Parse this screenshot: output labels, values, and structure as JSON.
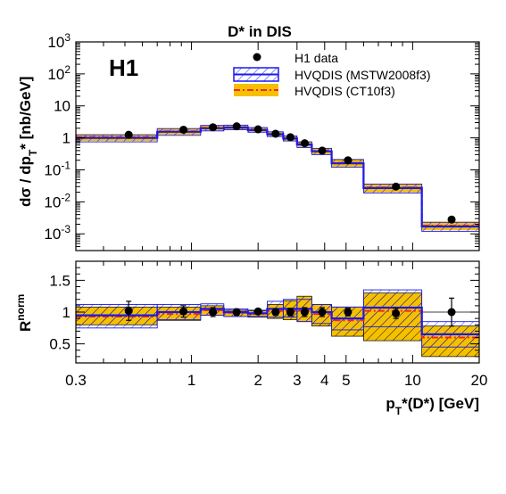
{
  "chart_data": {
    "type": "line",
    "title": "D* in DIS",
    "experiment_label": "H1",
    "x_scale": "log",
    "xlim": [
      0.3,
      20
    ],
    "x_ticks": [
      {
        "v": 0.3,
        "t": "0.3"
      },
      {
        "v": 1,
        "t": "1"
      },
      {
        "v": 2,
        "t": "2"
      },
      {
        "v": 3,
        "t": "3"
      },
      {
        "v": 4,
        "t": "4"
      },
      {
        "v": 5,
        "t": "5"
      },
      {
        "v": 10,
        "t": "10"
      },
      {
        "v": 20,
        "t": "20"
      }
    ],
    "x_label": "p",
    "x_label_sub": "T",
    "x_label_rest": "*(D*) [GeV]",
    "bins": [
      0.3,
      0.7,
      1.1,
      1.4,
      1.8,
      2.2,
      2.6,
      3.0,
      3.5,
      4.3,
      6.0,
      11.0,
      20.0
    ],
    "legend": [
      {
        "key": "data",
        "label": "H1 data"
      },
      {
        "key": "mstw",
        "label": "HVQDIS (MSTW2008f3)"
      },
      {
        "key": "ct10",
        "label": "HVQDIS (CT10f3)"
      }
    ],
    "colors": {
      "mstw": "#1a1aee",
      "ct10_band": "#f5c000",
      "ct10_line": "#ff2020",
      "data": "#000000"
    },
    "top": {
      "y_scale": "log",
      "ylim": [
        0.0003,
        1000
      ],
      "y_ticks": [
        {
          "v": 0.001,
          "m": "10",
          "e": "-3"
        },
        {
          "v": 0.01,
          "m": "10",
          "e": "-2"
        },
        {
          "v": 0.1,
          "m": "10",
          "e": "-1"
        },
        {
          "v": 1,
          "m": "1",
          "e": ""
        },
        {
          "v": 10,
          "m": "10",
          "e": ""
        },
        {
          "v": 100,
          "m": "10",
          "e": "2"
        },
        {
          "v": 1000,
          "m": "10",
          "e": "3"
        }
      ],
      "y_label": "dσ / dp",
      "y_label_sub": "T",
      "y_label_rest": "* [nb/GeV]",
      "data": [
        {
          "x": 0.52,
          "y": 1.25
        },
        {
          "x": 0.92,
          "y": 1.8
        },
        {
          "x": 1.25,
          "y": 2.15
        },
        {
          "x": 1.6,
          "y": 2.3
        },
        {
          "x": 2.0,
          "y": 1.85
        },
        {
          "x": 2.4,
          "y": 1.35
        },
        {
          "x": 2.8,
          "y": 1.05
        },
        {
          "x": 3.25,
          "y": 0.68
        },
        {
          "x": 3.9,
          "y": 0.4
        },
        {
          "x": 5.1,
          "y": 0.2
        },
        {
          "x": 8.4,
          "y": 0.03
        },
        {
          "x": 15.0,
          "y": 0.0028
        }
      ],
      "mstw": {
        "central": [
          1.0,
          1.55,
          2.0,
          2.1,
          1.75,
          1.3,
          0.95,
          0.62,
          0.38,
          0.16,
          0.027,
          0.0017
        ],
        "low": [
          0.75,
          1.2,
          1.65,
          1.8,
          1.5,
          1.1,
          0.8,
          0.5,
          0.3,
          0.12,
          0.019,
          0.0012
        ],
        "high": [
          1.25,
          1.95,
          2.45,
          2.5,
          2.1,
          1.55,
          1.15,
          0.75,
          0.47,
          0.21,
          0.036,
          0.0023
        ]
      },
      "ct10": {
        "central": [
          1.05,
          1.6,
          2.05,
          2.15,
          1.8,
          1.32,
          0.97,
          0.64,
          0.39,
          0.165,
          0.028,
          0.0018
        ],
        "low": [
          0.8,
          1.25,
          1.7,
          1.85,
          1.55,
          1.12,
          0.82,
          0.52,
          0.31,
          0.125,
          0.02,
          0.0013
        ],
        "high": [
          1.3,
          2.0,
          2.5,
          2.55,
          2.15,
          1.58,
          1.18,
          0.78,
          0.48,
          0.22,
          0.037,
          0.0024
        ]
      }
    },
    "bottom": {
      "y_scale": "linear",
      "ylim": [
        0.2,
        1.8
      ],
      "y_ticks": [
        {
          "v": 0.5,
          "t": "0.5"
        },
        {
          "v": 1,
          "t": "1"
        },
        {
          "v": 1.5,
          "t": "1.5"
        }
      ],
      "y_label": "R",
      "y_label_sup": "norm",
      "data": [
        {
          "x": 0.52,
          "y": 1.02,
          "err": 0.15
        },
        {
          "x": 0.92,
          "y": 1.01,
          "err": 0.09
        },
        {
          "x": 1.25,
          "y": 1.0,
          "err": 0.07
        },
        {
          "x": 1.6,
          "y": 1.0,
          "err": 0.05
        },
        {
          "x": 2.0,
          "y": 1.01,
          "err": 0.04
        },
        {
          "x": 2.4,
          "y": 1.0,
          "err": 0.05
        },
        {
          "x": 2.8,
          "y": 1.0,
          "err": 0.06
        },
        {
          "x": 3.25,
          "y": 1.0,
          "err": 0.07
        },
        {
          "x": 3.9,
          "y": 1.0,
          "err": 0.07
        },
        {
          "x": 5.1,
          "y": 1.0,
          "err": 0.06
        },
        {
          "x": 8.4,
          "y": 0.98,
          "err": 0.08
        },
        {
          "x": 15.0,
          "y": 1.0,
          "err": 0.22
        }
      ],
      "mstw": {
        "central": [
          0.95,
          1.0,
          1.05,
          1.0,
          0.98,
          1.05,
          1.05,
          1.05,
          1.0,
          0.9,
          1.07,
          0.65
        ],
        "low": [
          0.75,
          0.88,
          0.95,
          0.93,
          0.93,
          0.92,
          0.92,
          0.85,
          0.82,
          0.72,
          0.77,
          0.45
        ],
        "high": [
          1.12,
          1.12,
          1.13,
          1.05,
          1.03,
          1.17,
          1.2,
          1.2,
          1.12,
          1.08,
          1.35,
          0.85
        ]
      },
      "ct10": {
        "central": [
          0.93,
          0.97,
          1.03,
          0.99,
          0.97,
          1.02,
          1.02,
          1.02,
          0.97,
          0.87,
          1.02,
          0.6
        ],
        "low": [
          0.8,
          0.87,
          0.95,
          0.93,
          0.92,
          0.9,
          0.88,
          0.85,
          0.78,
          0.62,
          0.55,
          0.3
        ],
        "high": [
          1.08,
          1.08,
          1.1,
          1.03,
          1.02,
          1.12,
          1.18,
          1.25,
          1.12,
          1.08,
          1.3,
          0.78
        ]
      }
    }
  }
}
